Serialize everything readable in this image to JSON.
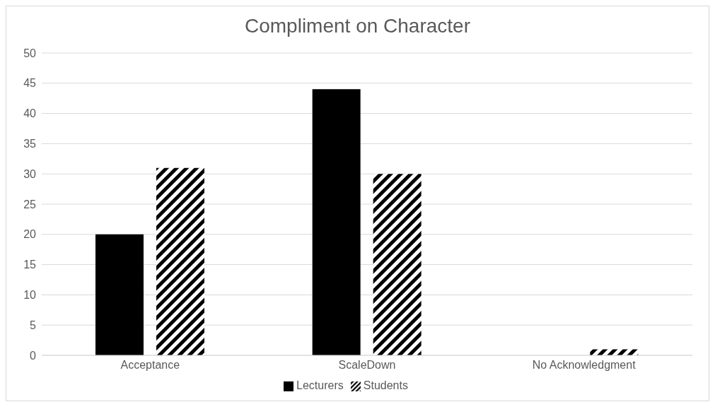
{
  "chart_data": {
    "type": "bar",
    "title": "Compliment on Character",
    "categories": [
      "Acceptance",
      "ScaleDown",
      "No Acknowledgment"
    ],
    "series": [
      {
        "name": "Lecturers",
        "color": "#000000",
        "values": [
          20,
          44,
          0
        ]
      },
      {
        "name": "Students",
        "color": "#000000",
        "values": [
          31,
          30,
          1
        ]
      }
    ],
    "ylim": [
      0,
      50
    ],
    "yticks": [
      0,
      5,
      10,
      15,
      20,
      25,
      30,
      35,
      40,
      45,
      50
    ],
    "grid": "y",
    "legend": "bottom"
  }
}
